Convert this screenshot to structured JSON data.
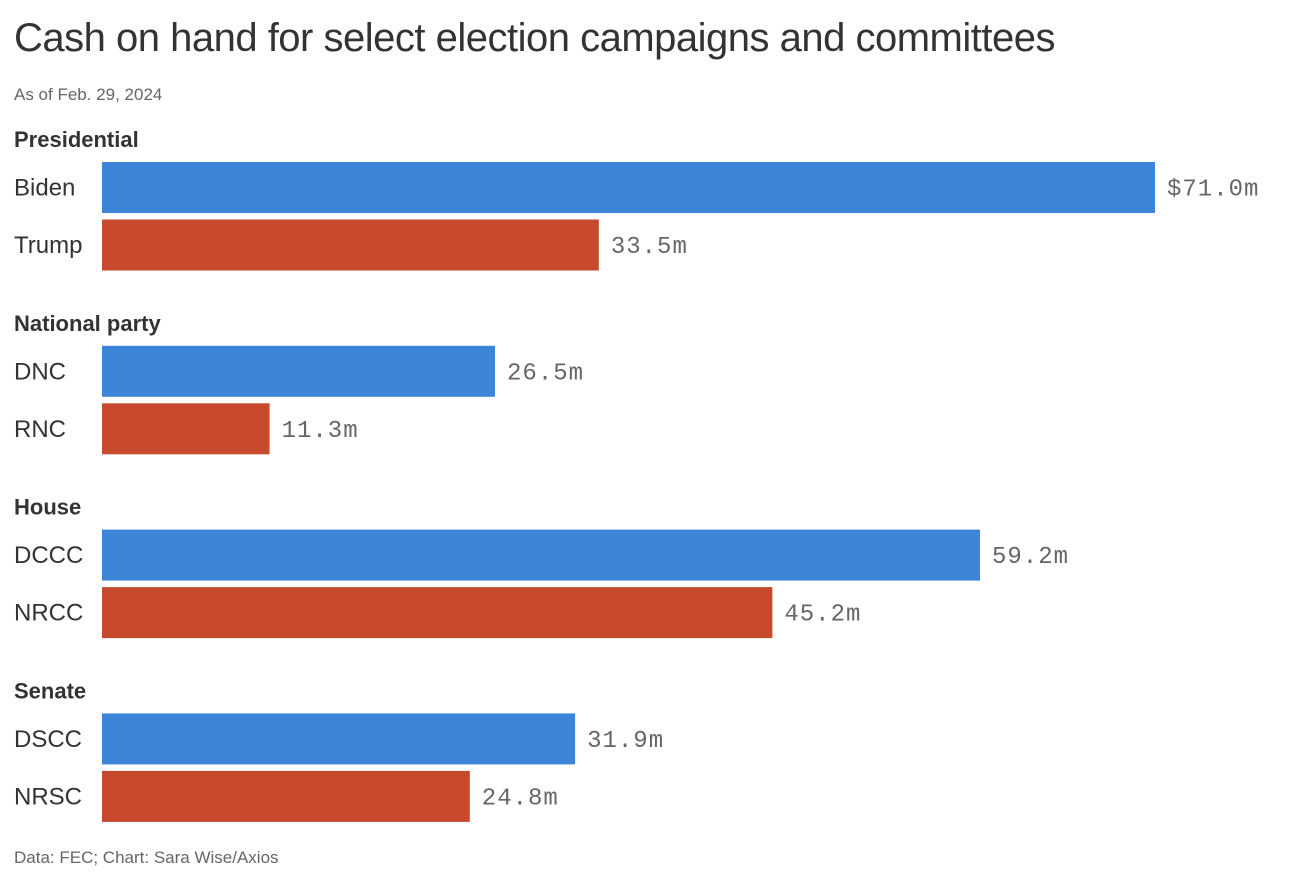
{
  "header": {
    "title": "Cash on hand for select election campaigns and committees",
    "subtitle": "As of Feb. 29, 2024"
  },
  "footer": {
    "source": "Data: FEC; Chart: Sara Wise/Axios"
  },
  "colors": {
    "democratic": "#3d85d8",
    "republican": "#c64a2b"
  },
  "chart_data": {
    "type": "bar",
    "orientation": "horizontal",
    "title": "Cash on hand for select election campaigns and committees",
    "subtitle": "As of Feb. 29, 2024",
    "unit": "million dollars",
    "grid": false,
    "legend": "none",
    "xlim": [
      0,
      71.0
    ],
    "groups": [
      {
        "name": "Presidential",
        "bars": [
          {
            "label": "Biden",
            "value": 71.0,
            "display": "$71.0m",
            "party": "democratic"
          },
          {
            "label": "Trump",
            "value": 33.5,
            "display": "33.5m",
            "party": "republican"
          }
        ]
      },
      {
        "name": "National party",
        "bars": [
          {
            "label": "DNC",
            "value": 26.5,
            "display": "26.5m",
            "party": "democratic"
          },
          {
            "label": "RNC",
            "value": 11.3,
            "display": "11.3m",
            "party": "republican"
          }
        ]
      },
      {
        "name": "House",
        "bars": [
          {
            "label": "DCCC",
            "value": 59.2,
            "display": "59.2m",
            "party": "democratic"
          },
          {
            "label": "NRCC",
            "value": 45.2,
            "display": "45.2m",
            "party": "republican"
          }
        ]
      },
      {
        "name": "Senate",
        "bars": [
          {
            "label": "DSCC",
            "value": 31.9,
            "display": "31.9m",
            "party": "democratic"
          },
          {
            "label": "NRSC",
            "value": 24.8,
            "display": "24.8m",
            "party": "republican"
          }
        ]
      }
    ]
  }
}
